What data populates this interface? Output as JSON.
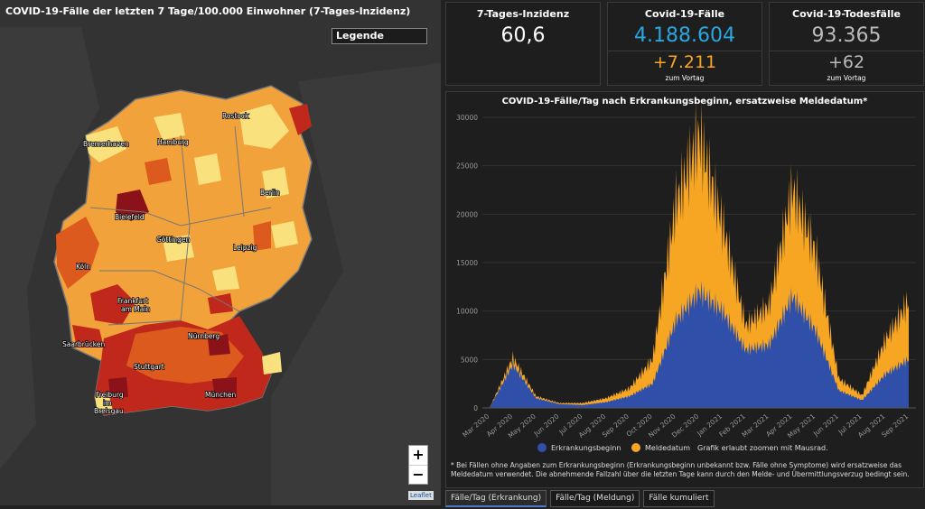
{
  "map": {
    "title": "COVID-19-Fälle der letzten 7 Tage/100.000 Einwohner (7-Tages-Inzidenz)",
    "legend_label": "Legende",
    "zoom_in": "+",
    "zoom_out": "−",
    "attribution": "Leaflet",
    "cities": [
      {
        "name": "Rostock"
      },
      {
        "name": "Bremerhaven"
      },
      {
        "name": "Hamburg"
      },
      {
        "name": "Berlin"
      },
      {
        "name": "Bielefeld"
      },
      {
        "name": "Göttingen"
      },
      {
        "name": "Leipzig"
      },
      {
        "name": "Köln"
      },
      {
        "name": "Frankfurt"
      },
      {
        "name": "am Main"
      },
      {
        "name": "Nürnberg"
      },
      {
        "name": "Saarbrücken"
      },
      {
        "name": "Stuttgart"
      },
      {
        "name": "Freiburg"
      },
      {
        "name": "im"
      },
      {
        "name": "Breisgau"
      },
      {
        "name": "München"
      }
    ],
    "colors": {
      "low": "#f9e27d",
      "mid": "#f2a23a",
      "high": "#dc5a1e",
      "higher": "#c0281c",
      "highest": "#8a1218"
    }
  },
  "kpis": {
    "incidence": {
      "title": "7-Tages-Inzidenz",
      "value": "60,6"
    },
    "cases": {
      "title": "Covid-19-Fälle",
      "value": "4.188.604",
      "delta": "+7.211",
      "sub": "zum Vortag",
      "color": "#2aa6e0"
    },
    "deaths": {
      "title": "Covid-19-Todesfälle",
      "value": "93.365",
      "delta": "+62",
      "sub": "zum Vortag"
    }
  },
  "chart_data": {
    "type": "area",
    "title": "COVID-19-Fälle/Tag nach Erkrankungsbeginn, ersatzweise Meldedatum*",
    "x": [
      "Mar 2020",
      "Apr 2020",
      "May 2020",
      "Jun 2020",
      "Jul 2020",
      "Aug 2020",
      "Sep 2020",
      "Oct 2020",
      "Nov 2020",
      "Dec 2020",
      "Jan 2021",
      "Feb 2021",
      "Mar 2021",
      "Apr 2021",
      "May 2021",
      "Jun 2021",
      "Jul 2021",
      "Aug 2021",
      "Sep 2021"
    ],
    "ylim": [
      0,
      30000
    ],
    "yticks": [
      0,
      5000,
      10000,
      15000,
      20000,
      25000,
      30000
    ],
    "series": [
      {
        "name": "Erkrankungsbeginn",
        "color": "#2f4fa8",
        "values": [
          0,
          4500,
          1000,
          400,
          300,
          600,
          1200,
          2500,
          9000,
          12000,
          10000,
          6000,
          6500,
          11500,
          8000,
          1800,
          800,
          3500,
          5000
        ]
      },
      {
        "name": "Meldedatum",
        "color": "#f6a623",
        "values": [
          0,
          700,
          200,
          100,
          200,
          400,
          800,
          2500,
          12000,
          16000,
          9000,
          2500,
          4000,
          11000,
          8000,
          1200,
          500,
          3500,
          6000
        ]
      }
    ],
    "legend_position": "bottom",
    "legend_note": "Grafik erlaubt zoomen mit Mausrad."
  },
  "footnote": "* Bei Fällen ohne Angaben zum Erkrankungsbeginn (Erkrankungsbeginn unbekannt bzw. Fälle ohne Symptome) wird ersatzweise das Meldedatum verwendet. Die abnehmende Fallzahl über die letzten Tage kann durch den Melde- und Übermittlungsverzug bedingt sein.",
  "tabs": [
    {
      "label": "Fälle/Tag (Erkrankung)",
      "active": true
    },
    {
      "label": "Fälle/Tag (Meldung)",
      "active": false
    },
    {
      "label": "Fälle kumuliert",
      "active": false
    }
  ]
}
